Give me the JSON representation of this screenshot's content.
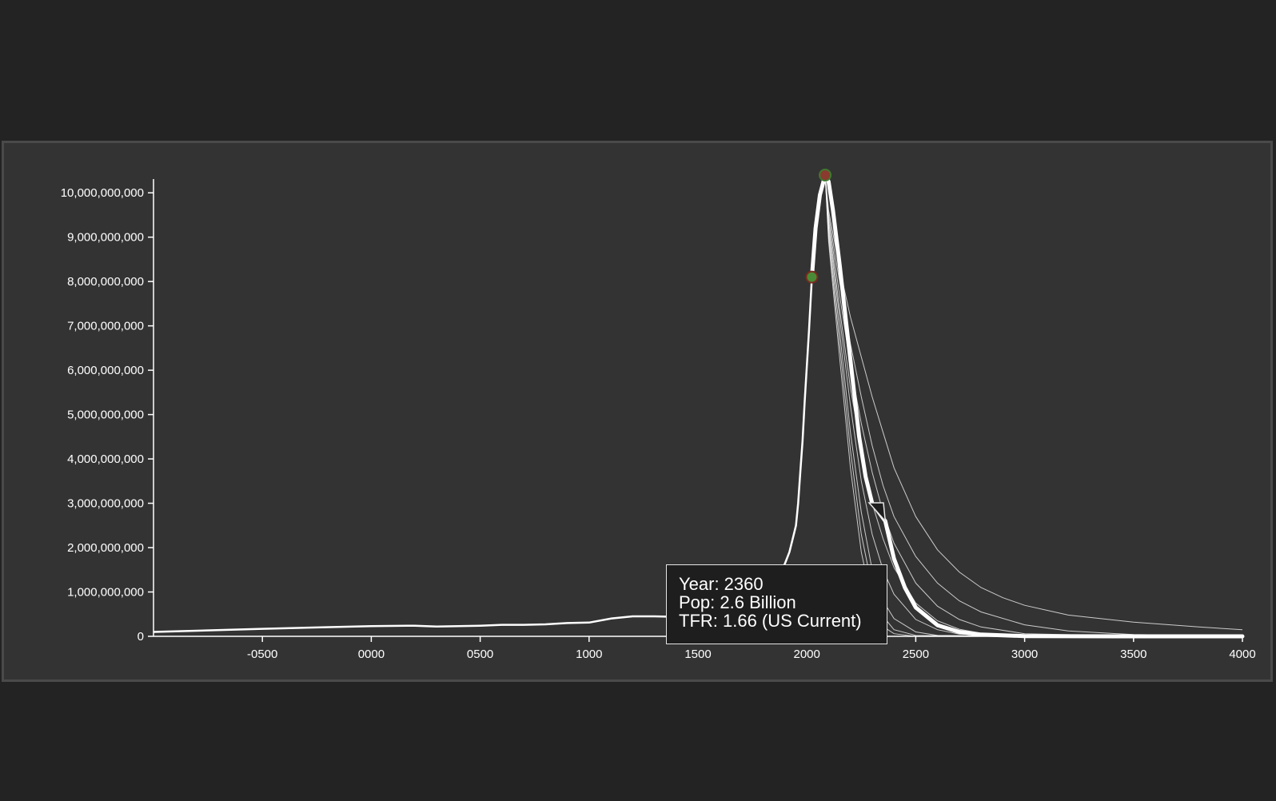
{
  "chart_data": {
    "type": "line",
    "title": "",
    "xlabel": "",
    "ylabel": "",
    "xlim": [
      -1000,
      4000
    ],
    "ylim": [
      0,
      10400000000
    ],
    "grid": false,
    "colors": {
      "background": "#232323",
      "panel": "#333333",
      "line": "#ffffff",
      "marker_fill": "#4a8a36",
      "marker_stroke": "#7a2a1e",
      "peak_marker_fill": "#8a3a2e",
      "peak_marker_stroke": "#3f7a2e",
      "tooltip_bg": "#1e1e1e"
    },
    "x_ticks": [
      {
        "value": -500,
        "label": "-0500"
      },
      {
        "value": 0,
        "label": "0000"
      },
      {
        "value": 500,
        "label": "0500"
      },
      {
        "value": 1000,
        "label": "1000"
      },
      {
        "value": 1500,
        "label": "1500"
      },
      {
        "value": 2000,
        "label": "2000"
      },
      {
        "value": 2500,
        "label": "2500"
      },
      {
        "value": 3000,
        "label": "3000"
      },
      {
        "value": 3500,
        "label": "3500"
      },
      {
        "value": 4000,
        "label": "4000"
      }
    ],
    "y_ticks": [
      {
        "value": 0,
        "label": "0"
      },
      {
        "value": 1000000000,
        "label": "1,000,000,000"
      },
      {
        "value": 2000000000,
        "label": "2,000,000,000"
      },
      {
        "value": 3000000000,
        "label": "3,000,000,000"
      },
      {
        "value": 4000000000,
        "label": "4,000,000,000"
      },
      {
        "value": 5000000000,
        "label": "5,000,000,000"
      },
      {
        "value": 6000000000,
        "label": "6,000,000,000"
      },
      {
        "value": 7000000000,
        "label": "7,000,000,000"
      },
      {
        "value": 8000000000,
        "label": "8,000,000,000"
      },
      {
        "value": 9000000000,
        "label": "9,000,000,000"
      },
      {
        "value": 10000000000,
        "label": "10,000,000,000"
      }
    ],
    "historical": {
      "x": [
        -1000,
        -500,
        0,
        200,
        300,
        400,
        500,
        600,
        700,
        800,
        900,
        1000,
        1100,
        1200,
        1300,
        1400,
        1500,
        1600,
        1700,
        1750,
        1800,
        1820,
        1850,
        1870,
        1900,
        1920,
        1940,
        1950,
        1960,
        1970,
        1980,
        1990,
        2000,
        2010,
        2023
      ],
      "y": [
        100000000,
        170000000,
        230000000,
        240000000,
        220000000,
        230000000,
        240000000,
        260000000,
        260000000,
        270000000,
        300000000,
        310000000,
        400000000,
        450000000,
        450000000,
        440000000,
        500000000,
        510000000,
        600000000,
        800000000,
        1000000000,
        1130000000,
        1260000000,
        1350000000,
        1650000000,
        1900000000,
        2300000000,
        2500000000,
        3000000000,
        3700000000,
        4400000000,
        5300000000,
        6100000000,
        6900000000,
        8100000000
      ]
    },
    "projections": [
      {
        "emphasis": "thick",
        "x": [
          2023,
          2040,
          2060,
          2084,
          2100,
          2120,
          2150,
          2180,
          2210,
          2240,
          2270,
          2300,
          2330,
          2360,
          2400,
          2450,
          2500,
          2600,
          2700,
          2800,
          3000,
          3500,
          4000
        ],
        "y": [
          8100000000,
          9200000000,
          9950000000,
          10400000000,
          10250000000,
          9600000000,
          8400000000,
          7100000000,
          5800000000,
          4500000000,
          3600000000,
          3000000000,
          2800000000,
          2600000000,
          1750000000,
          1100000000,
          650000000,
          250000000,
          100000000,
          40000000,
          5000000,
          0,
          0
        ]
      },
      {
        "emphasis": "thin",
        "x": [
          2084,
          2100,
          2150,
          2200,
          2250,
          2300,
          2350,
          2400,
          2500,
          2600,
          2700,
          2800,
          2900,
          3000,
          3200,
          3500,
          3800,
          4000
        ],
        "y": [
          10400000000,
          9600000000,
          8300000000,
          7200000000,
          6300000000,
          5400000000,
          4600000000,
          3800000000,
          2700000000,
          1950000000,
          1450000000,
          1100000000,
          870000000,
          700000000,
          480000000,
          320000000,
          210000000,
          150000000
        ]
      },
      {
        "emphasis": "thin",
        "x": [
          2084,
          2100,
          2150,
          2200,
          2250,
          2300,
          2350,
          2400,
          2500,
          2600,
          2700,
          2800,
          3000,
          3200,
          3500,
          4000
        ],
        "y": [
          10400000000,
          9500000000,
          8000000000,
          6600000000,
          5400000000,
          4300000000,
          3400000000,
          2700000000,
          1800000000,
          1200000000,
          800000000,
          550000000,
          260000000,
          120000000,
          40000000,
          5000000
        ]
      },
      {
        "emphasis": "thin",
        "x": [
          2084,
          2100,
          2150,
          2200,
          2250,
          2300,
          2350,
          2400,
          2500,
          2600,
          2700,
          2800,
          3000,
          3500,
          4000
        ],
        "y": [
          10400000000,
          9400000000,
          7700000000,
          6100000000,
          4800000000,
          3700000000,
          2800000000,
          2100000000,
          1200000000,
          680000000,
          380000000,
          210000000,
          60000000,
          5000000,
          0
        ]
      },
      {
        "emphasis": "thin",
        "x": [
          2084,
          2100,
          2150,
          2200,
          2250,
          2300,
          2350,
          2400,
          2500,
          2600,
          2700,
          2800,
          3000,
          4000
        ],
        "y": [
          10400000000,
          9300000000,
          7400000000,
          5600000000,
          4200000000,
          3000000000,
          2200000000,
          1550000000,
          750000000,
          350000000,
          160000000,
          70000000,
          10000000,
          0
        ]
      },
      {
        "emphasis": "thin",
        "x": [
          2084,
          2100,
          2150,
          2200,
          2250,
          2300,
          2350,
          2400,
          2500,
          2600,
          2700,
          3000,
          4000
        ],
        "y": [
          10400000000,
          9200000000,
          7200000000,
          5200000000,
          3500000000,
          2300000000,
          1500000000,
          950000000,
          380000000,
          150000000,
          50000000,
          0,
          0
        ]
      },
      {
        "emphasis": "thin",
        "x": [
          2084,
          2100,
          2150,
          2200,
          2250,
          2300,
          2350,
          2400,
          2500,
          2600,
          3000,
          4000
        ],
        "y": [
          10400000000,
          9100000000,
          6900000000,
          4600000000,
          2800000000,
          1500000000,
          800000000,
          400000000,
          100000000,
          20000000,
          0,
          0
        ]
      },
      {
        "emphasis": "thin",
        "x": [
          2084,
          2100,
          2150,
          2200,
          2250,
          2300,
          2350,
          2400,
          2500,
          3000,
          4000
        ],
        "y": [
          10400000000,
          9000000000,
          6600000000,
          4200000000,
          2300000000,
          1100000000,
          450000000,
          150000000,
          20000000,
          0,
          0
        ]
      },
      {
        "emphasis": "thin",
        "x": [
          2084,
          2100,
          2150,
          2200,
          2250,
          2300,
          2350,
          2400,
          2500,
          4000
        ],
        "y": [
          10400000000,
          8900000000,
          6300000000,
          3800000000,
          1900000000,
          750000000,
          220000000,
          60000000,
          0,
          0
        ]
      }
    ],
    "markers": [
      {
        "name": "current",
        "x": 2023,
        "y": 8100000000
      },
      {
        "name": "peak",
        "x": 2084,
        "y": 10400000000
      }
    ],
    "tooltip": {
      "year": "Year: 2360",
      "pop": "Pop: 2.6 Billion",
      "tfr": "TFR: 1.66 (US Current)",
      "anchor_x": 2360,
      "anchor_y": 2600000000
    }
  }
}
